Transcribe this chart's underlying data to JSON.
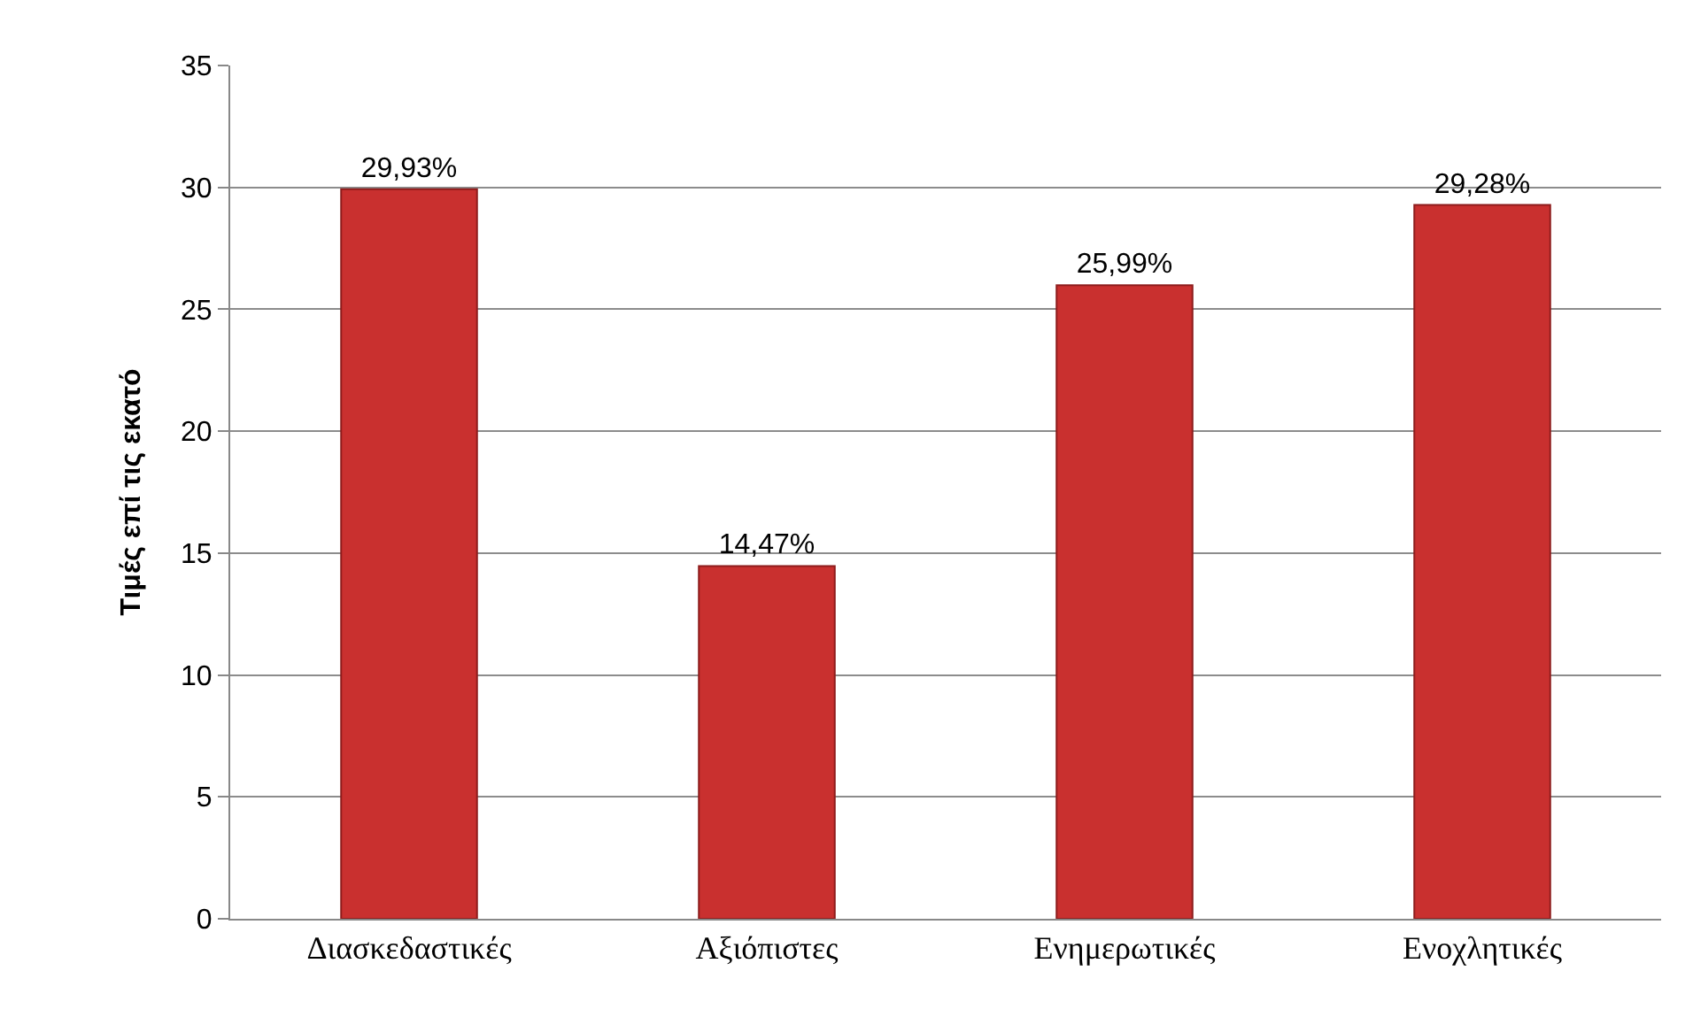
{
  "chart_data": {
    "type": "bar",
    "ylabel": "Τιμές επί τις εκατό",
    "categories": [
      "Διασκεδαστικές",
      "Αξιόπιστες",
      "Ενημερωτικές",
      "Ενοχλητικές"
    ],
    "values": [
      29.93,
      14.47,
      25.99,
      29.28
    ],
    "value_labels": [
      "29,93%",
      "14,47%",
      "25,99%",
      "29,28%"
    ],
    "color": "#c9302f",
    "ylim": [
      0,
      35
    ],
    "yticks": [
      0,
      5,
      10,
      15,
      20,
      25,
      30,
      35
    ],
    "grid": "y"
  }
}
